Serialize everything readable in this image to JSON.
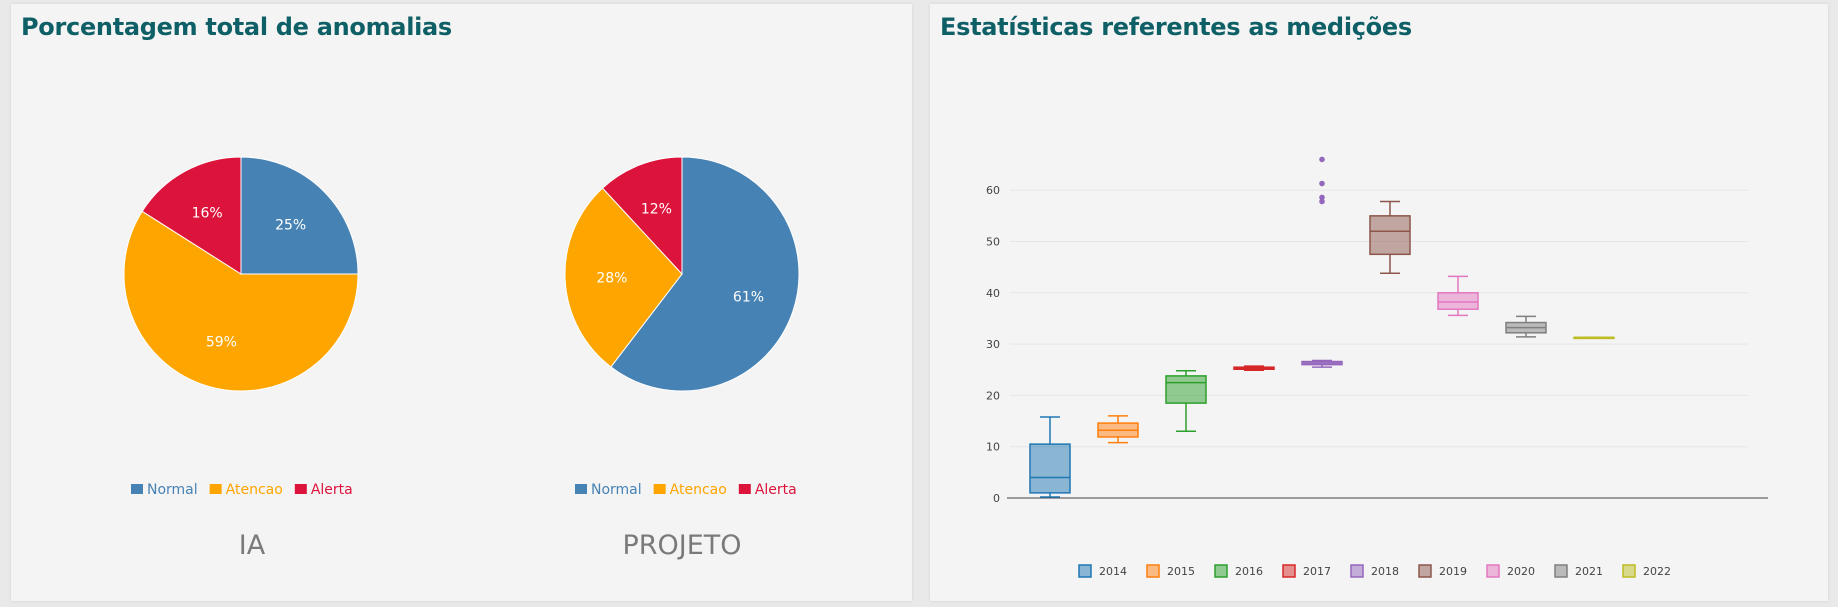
{
  "left_panel": {
    "title": "Porcentagem total de anomalias"
  },
  "right_panel": {
    "title": "Estatísticas referentes as medições"
  },
  "chart_data": [
    {
      "type": "pie",
      "title": "IA",
      "labels": [
        "Normal",
        "Atencao",
        "Alerta"
      ],
      "values": [
        25,
        59,
        16
      ],
      "value_labels": [
        "25%",
        "59%",
        "16%"
      ],
      "colors": [
        "#4682b4",
        "#ffa500",
        "#dc143c"
      ],
      "legend": "bottom"
    },
    {
      "type": "pie",
      "title": "PROJETO",
      "labels": [
        "Normal",
        "Atencao",
        "Alerta"
      ],
      "values": [
        61,
        28,
        12
      ],
      "value_labels": [
        "61%",
        "28%",
        "12%"
      ],
      "colors": [
        "#4682b4",
        "#ffa500",
        "#dc143c"
      ],
      "legend": "bottom"
    },
    {
      "type": "box",
      "ylim": [
        0,
        66
      ],
      "yticks": [
        0,
        10,
        20,
        30,
        40,
        50,
        60
      ],
      "grid": true,
      "legend": "bottom",
      "series": [
        {
          "name": "2014",
          "min": 0.2,
          "q1": 1,
          "median": 4,
          "q3": 10.5,
          "max": 15.8,
          "outliers": [],
          "color": "#1f77b4"
        },
        {
          "name": "2015",
          "min": 10.8,
          "q1": 11.9,
          "median": 13.2,
          "q3": 14.6,
          "max": 16,
          "outliers": [],
          "color": "#ff7f0e"
        },
        {
          "name": "2016",
          "min": 13,
          "q1": 18.5,
          "median": 22.5,
          "q3": 23.8,
          "max": 24.8,
          "outliers": [],
          "color": "#2ca02c"
        },
        {
          "name": "2017",
          "min": 24.9,
          "q1": 25.1,
          "median": 25.3,
          "q3": 25.5,
          "max": 25.7,
          "outliers": [],
          "color": "#d62728"
        },
        {
          "name": "2018",
          "min": 25.5,
          "q1": 26,
          "median": 26.3,
          "q3": 26.6,
          "max": 26.8,
          "outliers": [
            57.8,
            58.6,
            61.3,
            66
          ],
          "color": "#9467bd"
        },
        {
          "name": "2019",
          "min": 43.8,
          "q1": 47.5,
          "median": 52,
          "q3": 55,
          "max": 57.8,
          "outliers": [],
          "color": "#8c564b"
        },
        {
          "name": "2020",
          "min": 35.6,
          "q1": 36.8,
          "median": 38.2,
          "q3": 40,
          "max": 43.2,
          "outliers": [],
          "color": "#e377c2"
        },
        {
          "name": "2021",
          "min": 31.4,
          "q1": 32.2,
          "median": 33.2,
          "q3": 34.2,
          "max": 35.4,
          "outliers": [],
          "color": "#7f7f7f"
        },
        {
          "name": "2022",
          "min": 31.3,
          "q1": 31.3,
          "median": 31.3,
          "q3": 31.3,
          "max": 31.3,
          "outliers": [],
          "color": "#bcbd22"
        }
      ]
    }
  ]
}
